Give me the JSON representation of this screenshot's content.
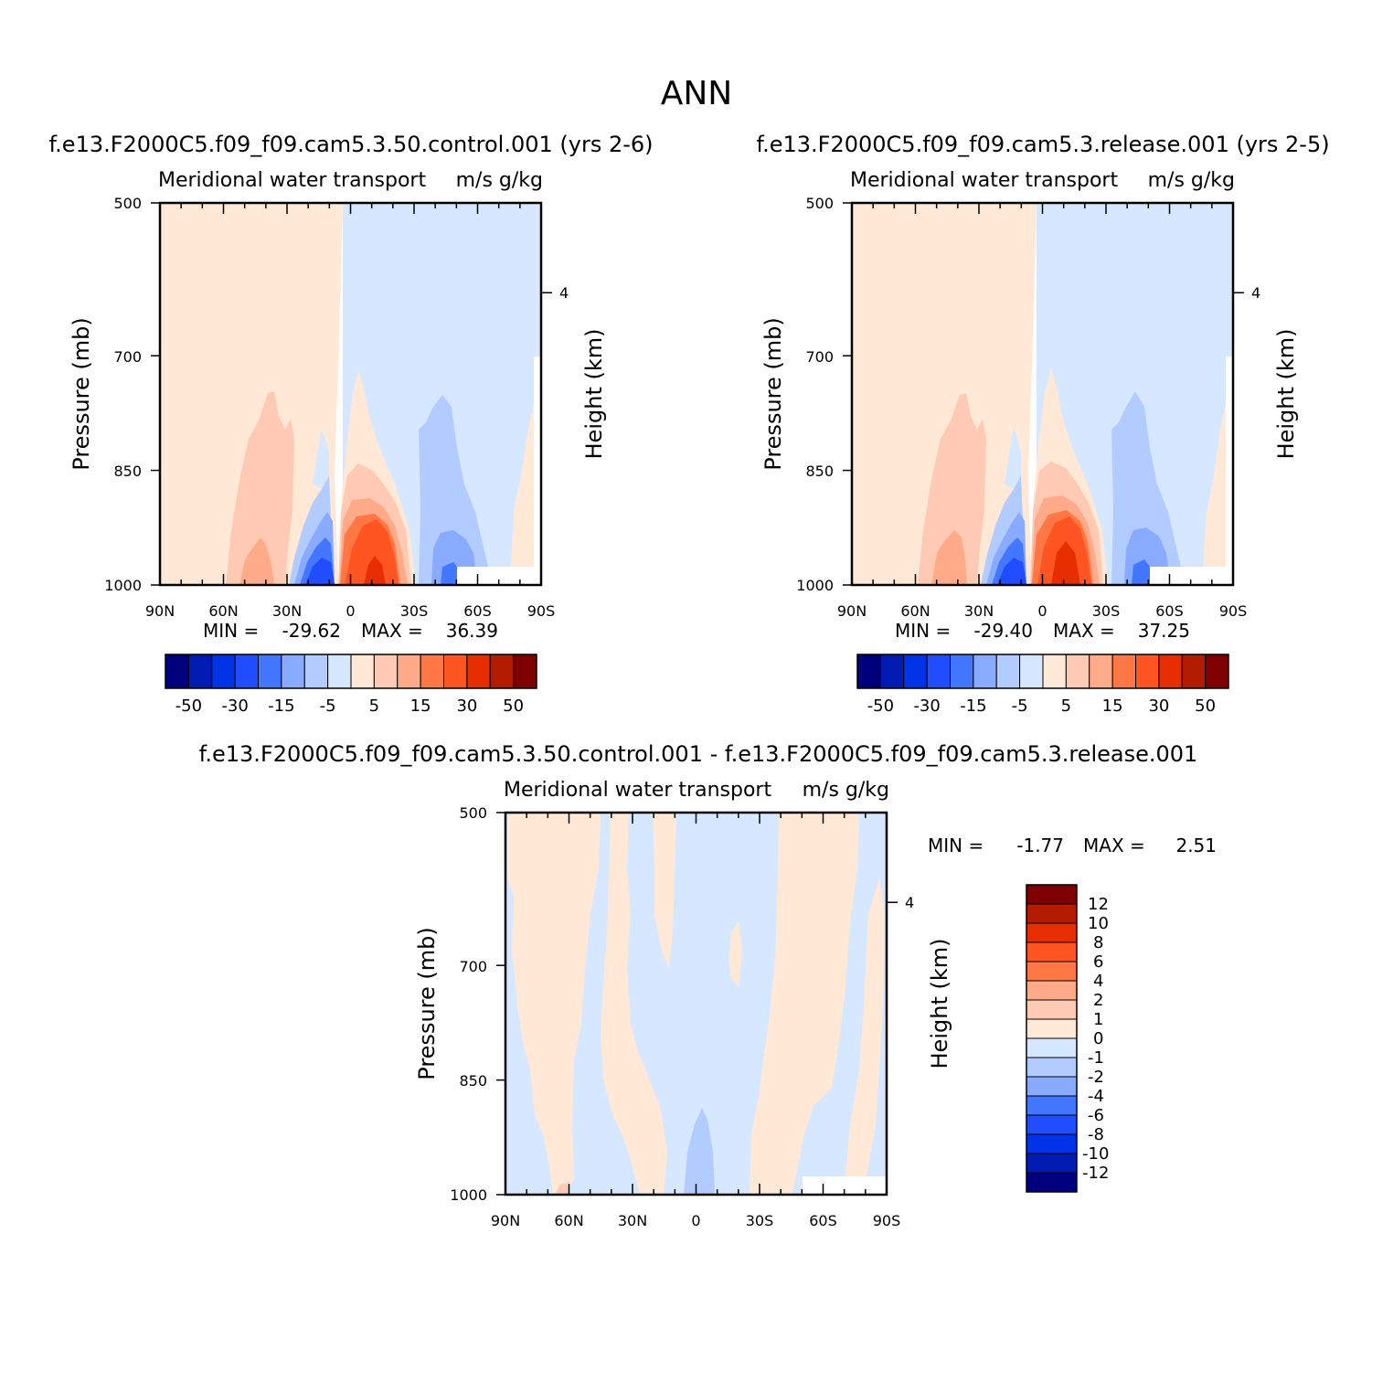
{
  "figure": {
    "title": "ANN"
  },
  "chart_data": [
    {
      "type": "heatmap",
      "case_title": "f.e13.F2000C5.f09_f09.cam5.3.50.control.001 (yrs 2-6)",
      "left_label": "Meridional water transport",
      "right_label": "m/s g/kg",
      "ylabel": "Pressure (mb)",
      "y2label": "Height (km)",
      "x_ticks": [
        "90N",
        "60N",
        "30N",
        "0",
        "30S",
        "60S",
        "90S"
      ],
      "y_ticks": [
        "500",
        "700",
        "850",
        "1000"
      ],
      "y2_ticks": [
        "4"
      ],
      "ylim": [
        500,
        1000
      ],
      "xlim": [
        90,
        -90
      ],
      "min_label": "MIN =",
      "min_value": "-29.62",
      "max_label": "MAX =",
      "max_value": "36.39",
      "colorbar": {
        "colors": [
          "#00007f",
          "#001cb3",
          "#0033e6",
          "#1f4dff",
          "#4477ff",
          "#88aaff",
          "#b3ccff",
          "#d6e8ff",
          "#ffe8d6",
          "#ffcab3",
          "#ffaa88",
          "#ff7744",
          "#ff5522",
          "#e62e00",
          "#b31c00",
          "#7f0000"
        ],
        "tick_labels": [
          "-50",
          "-30",
          "-15",
          "-5",
          "5",
          "15",
          "30",
          "50"
        ]
      }
    },
    {
      "type": "heatmap",
      "case_title": "f.e13.F2000C5.f09_f09.cam5.3.release.001 (yrs 2-5)",
      "left_label": "Meridional water transport",
      "right_label": "m/s g/kg",
      "ylabel": "Pressure (mb)",
      "y2label": "Height (km)",
      "x_ticks": [
        "90N",
        "60N",
        "30N",
        "0",
        "30S",
        "60S",
        "90S"
      ],
      "y_ticks": [
        "500",
        "700",
        "850",
        "1000"
      ],
      "y2_ticks": [
        "4"
      ],
      "ylim": [
        500,
        1000
      ],
      "xlim": [
        90,
        -90
      ],
      "min_label": "MIN =",
      "min_value": "-29.40",
      "max_label": "MAX =",
      "max_value": "37.25",
      "colorbar": {
        "colors": [
          "#00007f",
          "#001cb3",
          "#0033e6",
          "#1f4dff",
          "#4477ff",
          "#88aaff",
          "#b3ccff",
          "#d6e8ff",
          "#ffe8d6",
          "#ffcab3",
          "#ffaa88",
          "#ff7744",
          "#ff5522",
          "#e62e00",
          "#b31c00",
          "#7f0000"
        ],
        "tick_labels": [
          "-50",
          "-30",
          "-15",
          "-5",
          "5",
          "15",
          "30",
          "50"
        ]
      }
    },
    {
      "type": "heatmap",
      "case_title": "f.e13.F2000C5.f09_f09.cam5.3.50.control.001 - f.e13.F2000C5.f09_f09.cam5.3.release.001",
      "left_label": "Meridional water transport",
      "right_label": "m/s g/kg",
      "ylabel": "Pressure (mb)",
      "y2label": "Height (km)",
      "x_ticks": [
        "90N",
        "60N",
        "30N",
        "0",
        "30S",
        "60S",
        "90S"
      ],
      "y_ticks": [
        "500",
        "700",
        "850",
        "1000"
      ],
      "y2_ticks": [
        "4"
      ],
      "ylim": [
        500,
        1000
      ],
      "xlim": [
        90,
        -90
      ],
      "min_label": "MIN =",
      "min_value": "-1.77",
      "max_label": "MAX =",
      "max_value": "2.51",
      "colorbar": {
        "colors": [
          "#00007f",
          "#001cb3",
          "#0033e6",
          "#1f4dff",
          "#4477ff",
          "#88aaff",
          "#b3ccff",
          "#d6e8ff",
          "#ffe8d6",
          "#ffcab3",
          "#ffaa88",
          "#ff7744",
          "#ff5522",
          "#e62e00",
          "#b31c00",
          "#7f0000"
        ],
        "tick_labels": [
          "12",
          "10",
          "8",
          "6",
          "4",
          "2",
          "1",
          "0",
          "-1",
          "-2",
          "-4",
          "-6",
          "-8",
          "-10",
          "-12"
        ]
      }
    }
  ]
}
